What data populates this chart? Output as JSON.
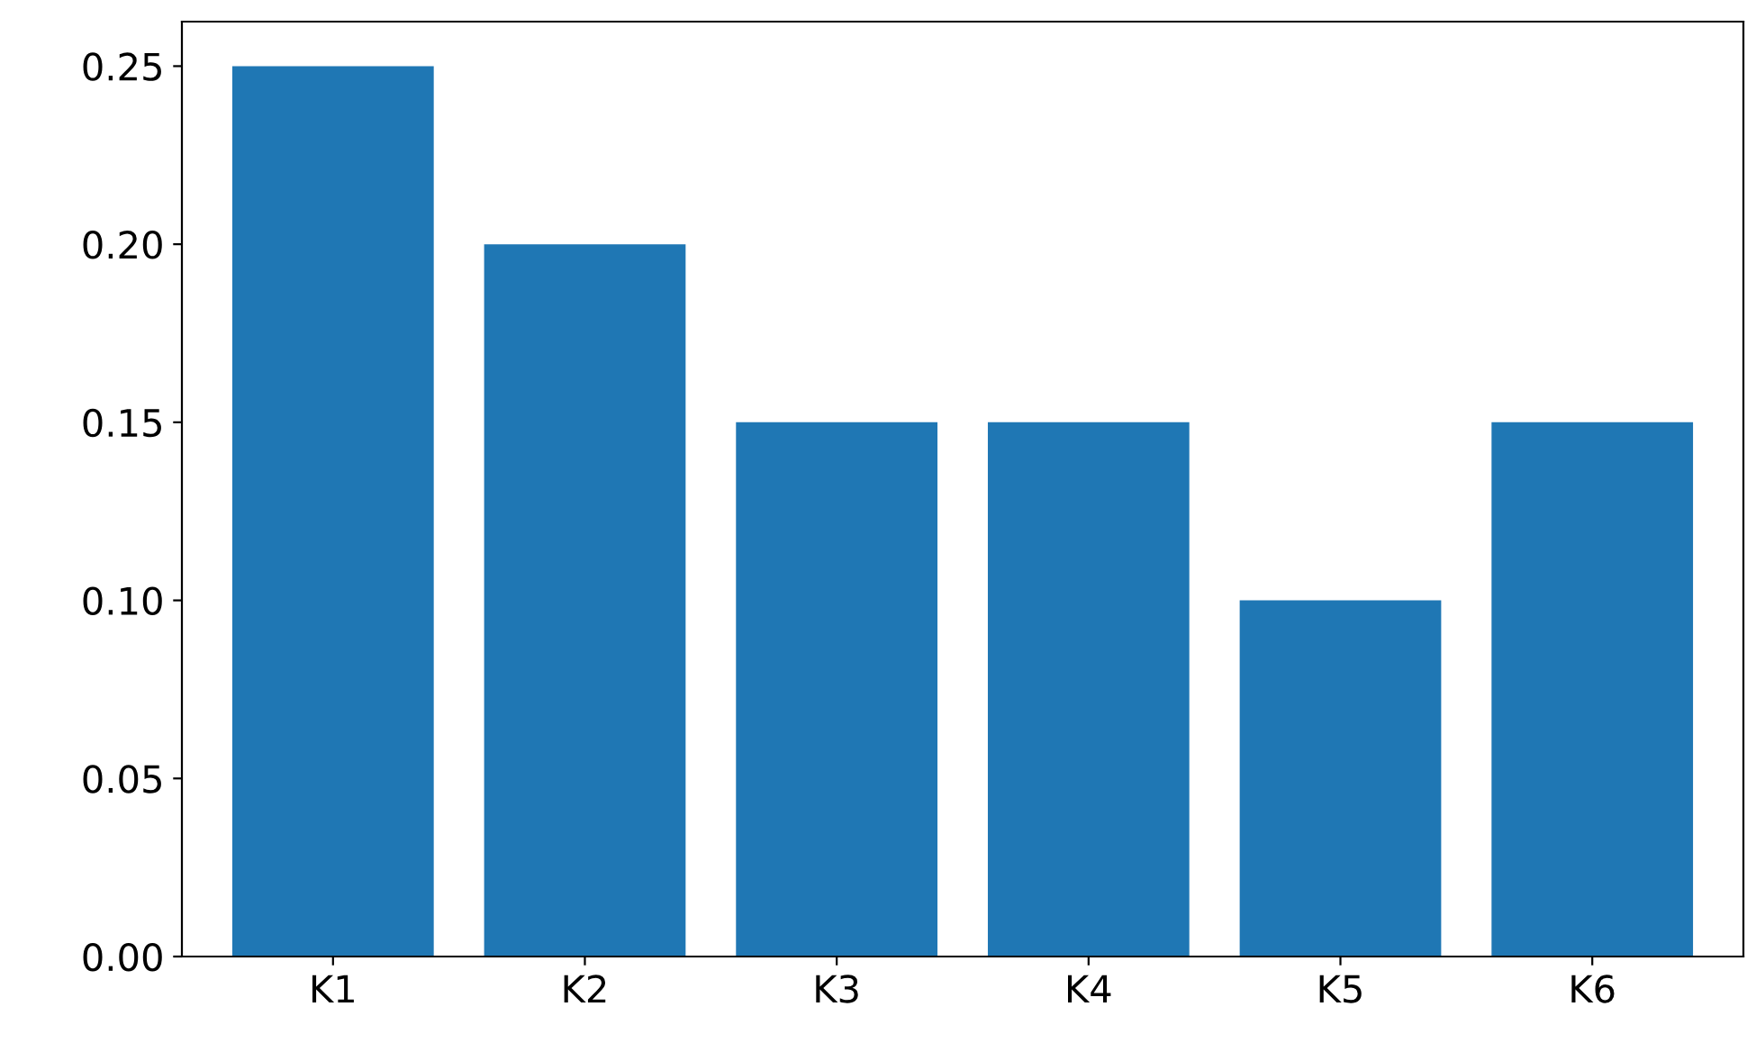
{
  "chart_data": {
    "type": "bar",
    "categories": [
      "K1",
      "K2",
      "K3",
      "K4",
      "K5",
      "K6"
    ],
    "values": [
      0.25,
      0.2,
      0.15,
      0.15,
      0.1,
      0.15
    ],
    "color": "#1f77b4",
    "ylim": [
      0,
      0.2625
    ],
    "yticks": [
      {
        "value": 0,
        "label": "0.00"
      },
      {
        "value": 0.05,
        "label": "0.05"
      },
      {
        "value": 0.1,
        "label": "0.10"
      },
      {
        "value": 0.15,
        "label": "0.15"
      },
      {
        "value": 0.2,
        "label": "0.20"
      },
      {
        "value": 0.25,
        "label": "0.25"
      }
    ],
    "grid": false
  }
}
